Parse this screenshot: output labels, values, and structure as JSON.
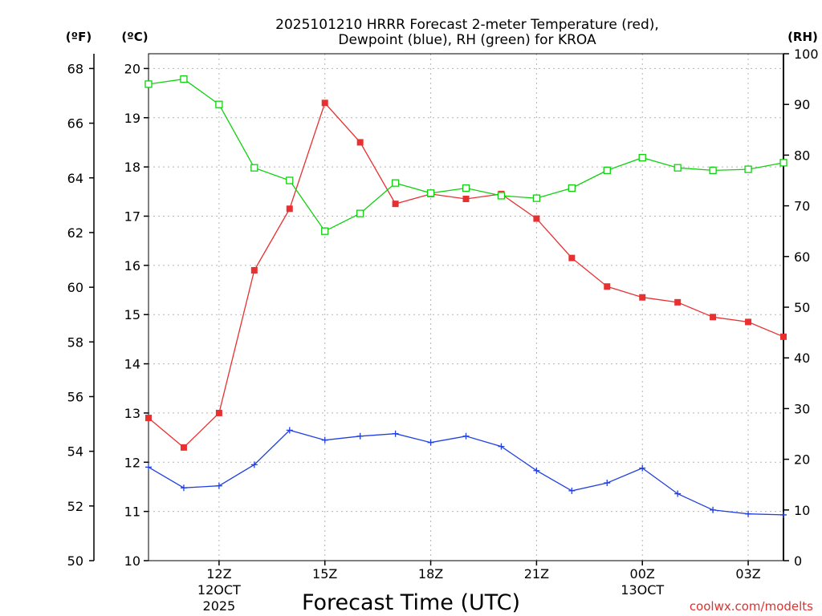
{
  "chart_data": {
    "type": "line",
    "title_line1": "2025101210 HRRR Forecast 2-meter Temperature (red),",
    "title_line2": "Dewpoint (blue), RH (green) for KROA",
    "xlabel": "Forecast Time (UTC)",
    "credit": "coolwx.com/modelts",
    "axis_units": {
      "fahrenheit": "(ºF)",
      "celsius": "(ºC)",
      "rh": "(RH)"
    },
    "x_hours": [
      10,
      11,
      12,
      13,
      14,
      15,
      16,
      17,
      18,
      19,
      20,
      21,
      22,
      23,
      24,
      25,
      26,
      27,
      28
    ],
    "xlim": [
      10,
      28
    ],
    "x_ticks": [
      {
        "hour": 12,
        "label": "12Z",
        "sub1": "12OCT",
        "sub2": "2025"
      },
      {
        "hour": 15,
        "label": "15Z",
        "sub1": "",
        "sub2": ""
      },
      {
        "hour": 18,
        "label": "18Z",
        "sub1": "",
        "sub2": ""
      },
      {
        "hour": 21,
        "label": "21Z",
        "sub1": "",
        "sub2": ""
      },
      {
        "hour": 24,
        "label": "00Z",
        "sub1": "13OCT",
        "sub2": ""
      },
      {
        "hour": 27,
        "label": "03Z",
        "sub1": "",
        "sub2": ""
      }
    ],
    "celsius_range": [
      10,
      20.3
    ],
    "celsius_ticks": [
      "10",
      "11",
      "12",
      "13",
      "14",
      "15",
      "16",
      "17",
      "18",
      "19",
      "20"
    ],
    "fahrenheit_ticks": [
      "50",
      "52",
      "54",
      "56",
      "58",
      "60",
      "62",
      "64",
      "66",
      "68"
    ],
    "rh_range": [
      0,
      100
    ],
    "rh_ticks": [
      "0",
      "10",
      "20",
      "30",
      "40",
      "50",
      "60",
      "70",
      "80",
      "90",
      "100"
    ],
    "series": [
      {
        "name": "Temperature",
        "units": "C",
        "color": "#e83030",
        "marker": "filled-square",
        "values": [
          12.9,
          12.3,
          13.0,
          15.9,
          17.15,
          19.3,
          18.5,
          17.25,
          17.45,
          17.35,
          17.45,
          16.95,
          16.15,
          15.57,
          15.35,
          15.25,
          14.95,
          14.85,
          14.55
        ]
      },
      {
        "name": "Dewpoint",
        "units": "C",
        "color": "#2040e0",
        "marker": "plus",
        "values": [
          11.9,
          11.48,
          11.52,
          11.95,
          12.65,
          12.45,
          12.53,
          12.58,
          12.4,
          12.53,
          12.32,
          11.83,
          11.42,
          11.58,
          11.88,
          11.36,
          11.03,
          10.95,
          10.93
        ]
      },
      {
        "name": "RH",
        "units": "%",
        "color": "#10d010",
        "marker": "open-square",
        "values": [
          94,
          95,
          90,
          77.5,
          75,
          65,
          68.5,
          74.5,
          72.5,
          73.5,
          72,
          71.5,
          73.5,
          77,
          79.5,
          77.5,
          77,
          77.2,
          78.5
        ]
      }
    ]
  }
}
